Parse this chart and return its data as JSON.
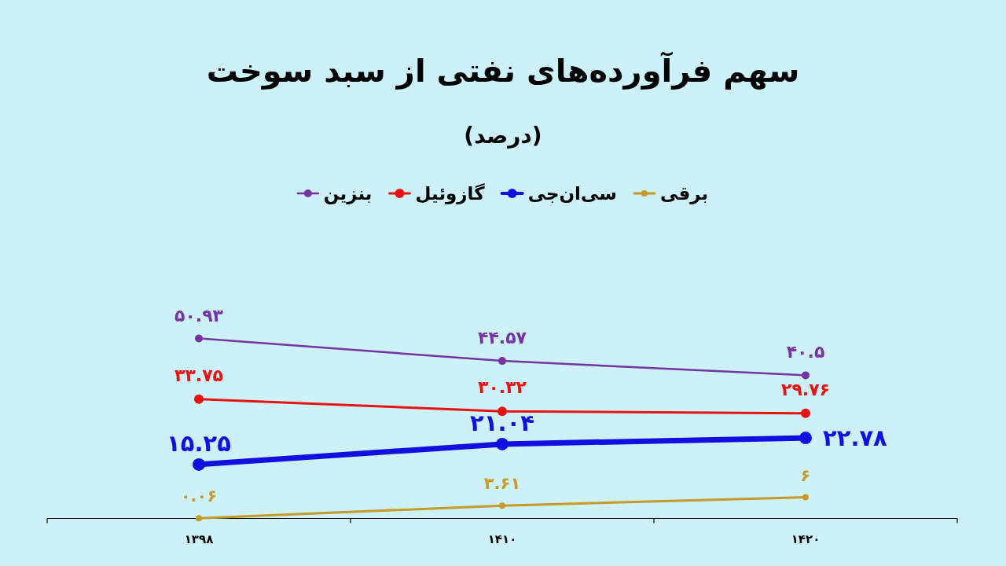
{
  "chart_data": {
    "type": "line",
    "title": "سهم فرآورده‌های نفتی از سبد سوخت",
    "subtitle": "(درصد)",
    "categories": [
      "۱۳۹۸",
      "۱۴۱۰",
      "۱۴۲۰"
    ],
    "series": [
      {
        "name": "برقی",
        "color": "#c89a28",
        "values": [
          0.06,
          3.61,
          6
        ],
        "value_labels": [
          "۰.۰۶",
          "۳.۶۱",
          "۶"
        ]
      },
      {
        "name": "سی‌ان‌جی",
        "color": "#1010e0",
        "values": [
          15.25,
          21.04,
          22.78
        ],
        "value_labels": [
          "۱۵.۲۵",
          "۲۱.۰۴",
          "۲۲.۷۸"
        ]
      },
      {
        "name": "گازوئیل",
        "color": "#e81212",
        "values": [
          33.75,
          30.32,
          29.76
        ],
        "value_labels": [
          "۳۳.۷۵",
          "۳۰.۳۲",
          "۲۹.۷۶"
        ]
      },
      {
        "name": "بنزین",
        "color": "#7434a4",
        "values": [
          50.93,
          44.57,
          40.5
        ],
        "value_labels": [
          "۵۰.۹۳",
          "۴۴.۵۷",
          "۴۰.۵"
        ]
      }
    ],
    "tick_labels": "x",
    "legend": "top",
    "marker": "circle"
  }
}
